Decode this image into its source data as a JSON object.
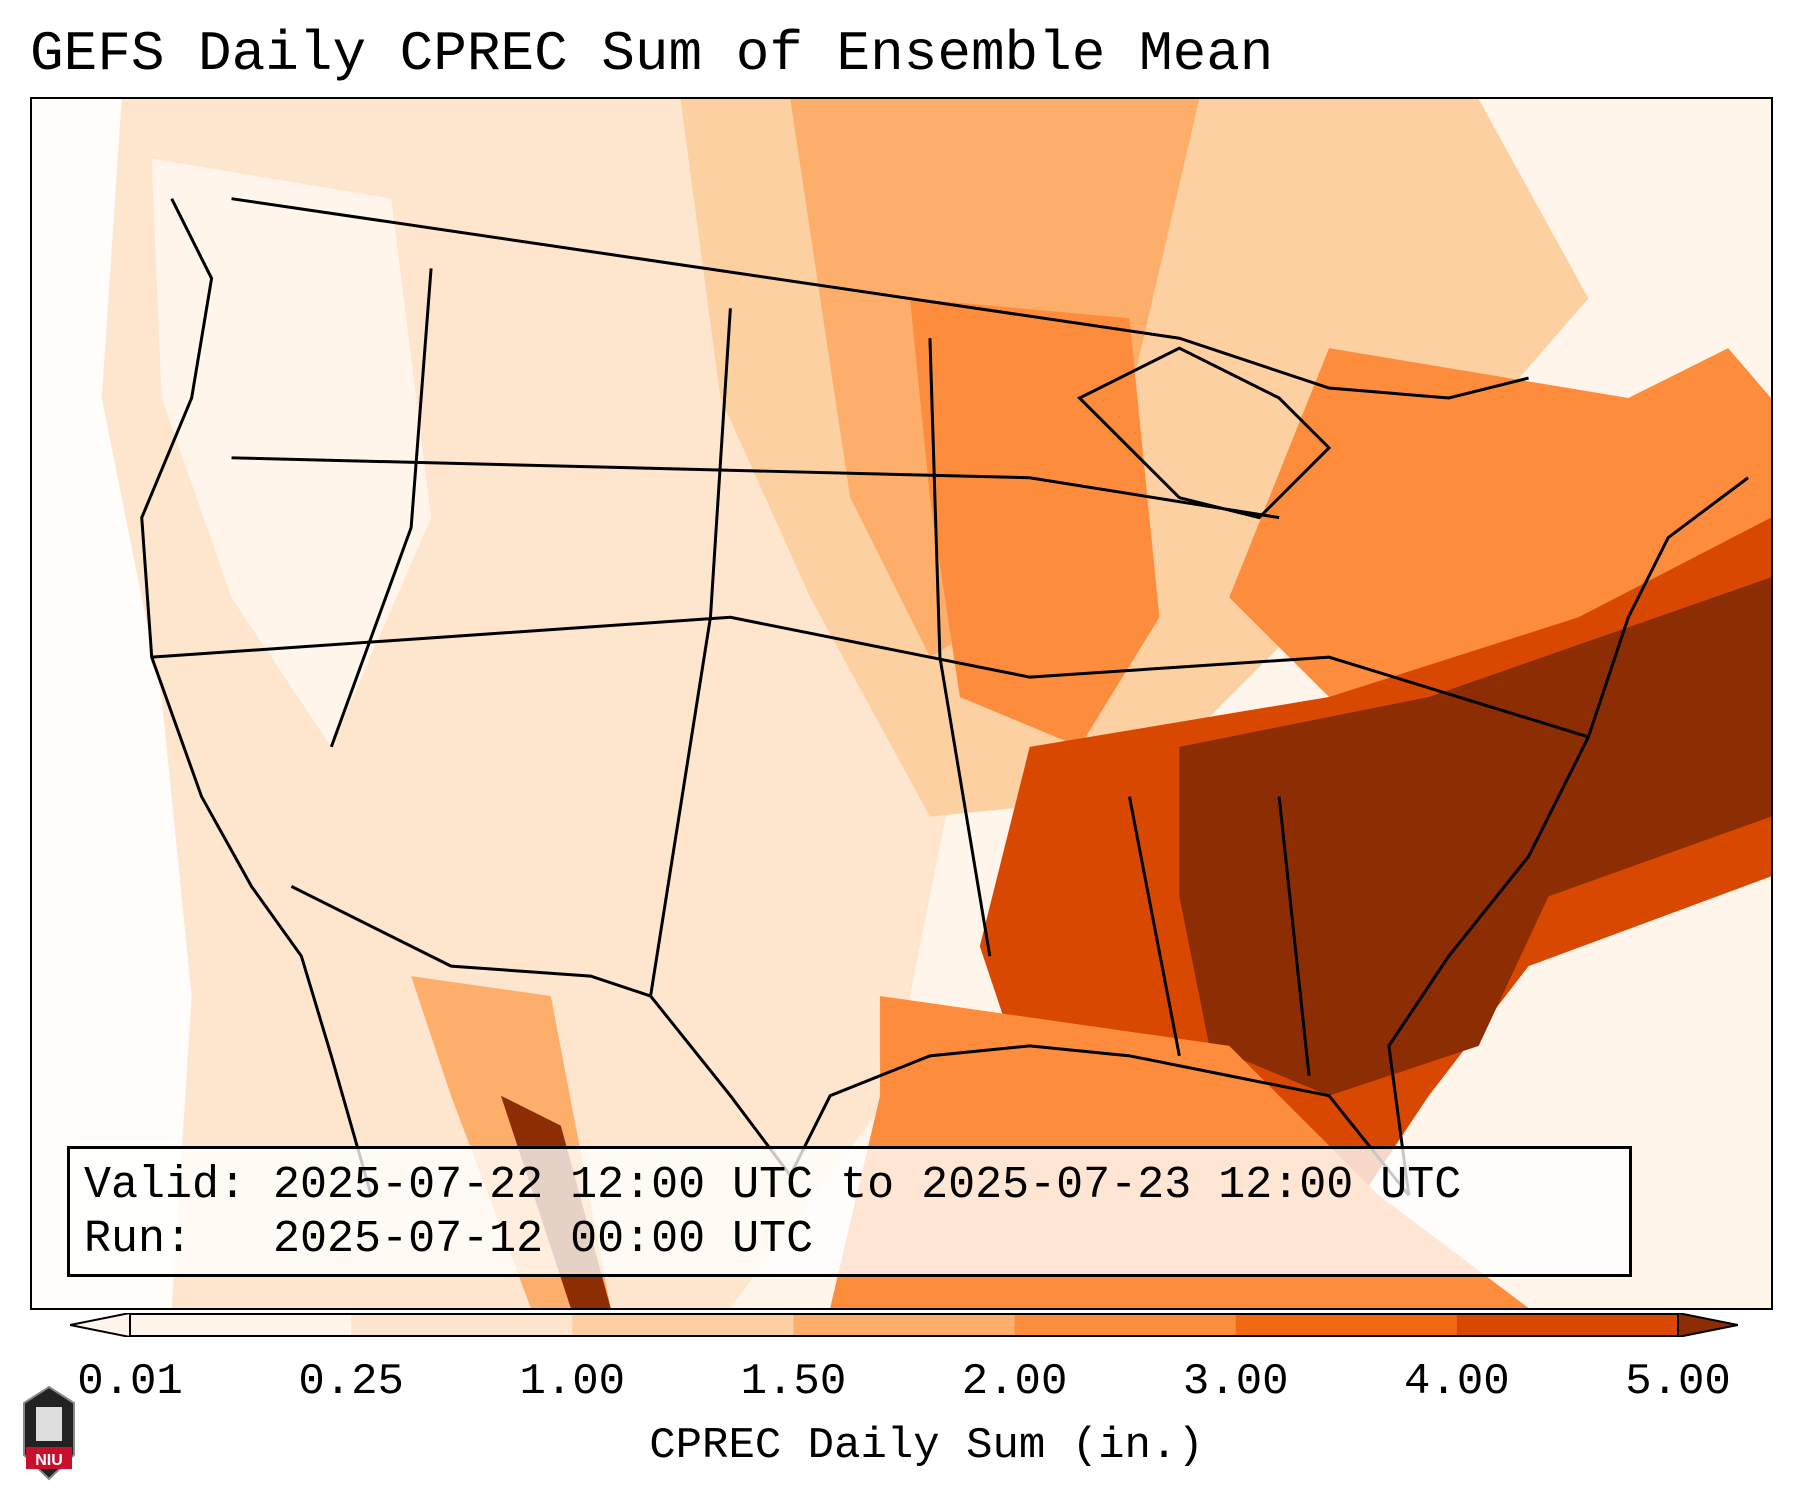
{
  "title": "GEFS Daily CPREC Sum of Ensemble Mean",
  "info": {
    "valid_label": "Valid:",
    "valid_value": "2025-07-22 12:00 UTC to 2025-07-23 12:00 UTC",
    "run_label": "Run:",
    "run_value": "2025-07-12 00:00 UTC"
  },
  "colorbar": {
    "label": "CPREC Daily Sum (in.)",
    "ticks": [
      "0.01",
      "0.25",
      "1.00",
      "1.50",
      "2.00",
      "3.00",
      "4.00",
      "5.00"
    ],
    "colors": [
      "#fff5eb",
      "#fee6ce",
      "#fdd0a2",
      "#fdae6b",
      "#fd8d3c",
      "#f16913",
      "#d94801",
      "#8c2d04"
    ],
    "extend": "both"
  },
  "map": {
    "region": "Contiguous United States",
    "variable": "CPREC daily sum",
    "heaviest_area": "Southeast US and Atlantic coast"
  },
  "logo": {
    "text": "NIU",
    "icon": "university-logo-icon",
    "color": "#c8102e"
  }
}
